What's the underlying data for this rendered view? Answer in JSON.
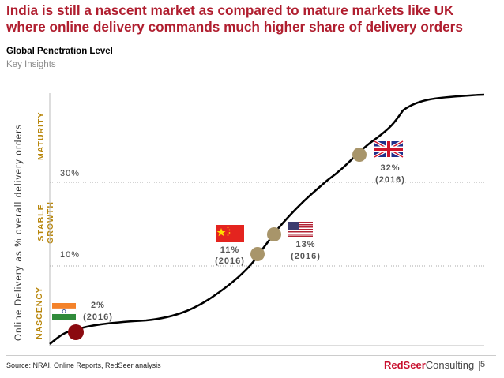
{
  "header": {
    "title": "India is still a nascent market as compared to mature markets like UK where online delivery commands much higher share of delivery orders",
    "subtitle": "Global Penetration Level",
    "section": "Key Insights"
  },
  "chart_data": {
    "type": "line",
    "ylabel": "Online Delivery as % overall delivery orders",
    "stages": [
      "NASCENCY",
      "STABLE GROWTH",
      "MATURITY"
    ],
    "gridlines": [
      {
        "label": "10%",
        "value": 10
      },
      {
        "label": "30%",
        "value": 30
      }
    ],
    "points": [
      {
        "country": "India",
        "flag": "india-flag-icon",
        "label": "2%",
        "year": "(2016)",
        "value": 2
      },
      {
        "country": "China",
        "flag": "china-flag-icon",
        "label": "11%",
        "year": "(2016)",
        "value": 11
      },
      {
        "country": "USA",
        "flag": "usa-flag-icon",
        "label": "13%",
        "year": "(2016)",
        "value": 13
      },
      {
        "country": "UK",
        "flag": "uk-flag-icon",
        "label": "32%",
        "year": "(2016)",
        "value": 32
      }
    ],
    "colors": {
      "line": "#000000",
      "india_marker": "#8b0a10",
      "marker": "#a8956a",
      "grid": "#aaaaaa"
    }
  },
  "footer": {
    "source": "Source: NRAI, Online Reports, RedSeer analysis",
    "brand_red": "RedSeer",
    "brand_rest": "Consulting",
    "page": "5"
  }
}
